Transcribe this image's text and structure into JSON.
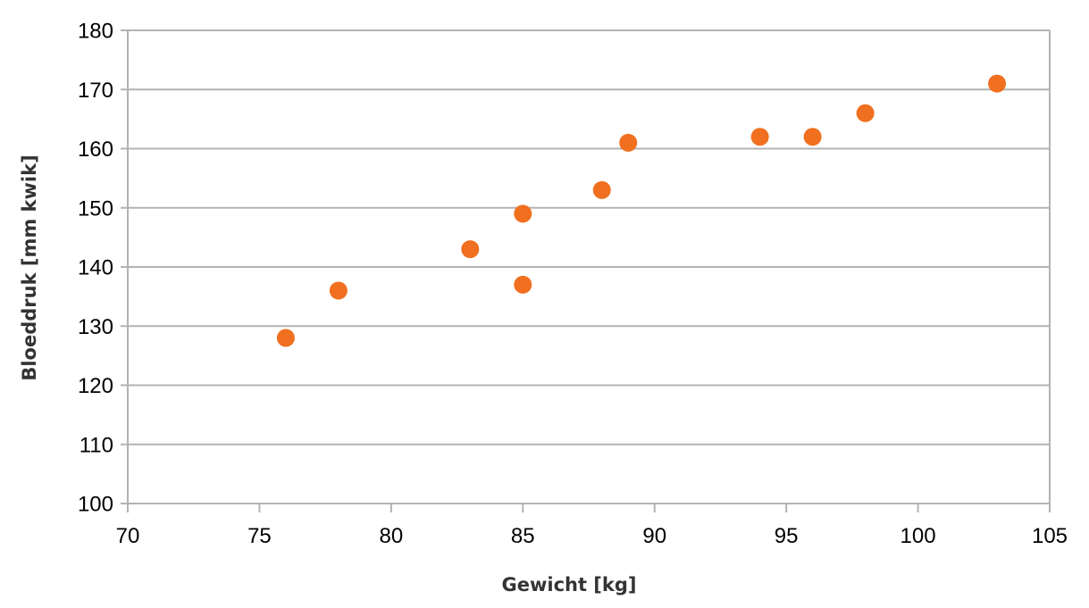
{
  "chart_data": {
    "type": "scatter",
    "xlabel": "Gewicht [kg]",
    "ylabel": "Bloeddruk [mm kwik]",
    "xlim": [
      70,
      105
    ],
    "ylim": [
      100,
      180
    ],
    "xticks": [
      "70",
      "75",
      "80",
      "85",
      "90",
      "95",
      "100",
      "105"
    ],
    "yticks": [
      "100",
      "110",
      "120",
      "130",
      "140",
      "150",
      "160",
      "170",
      "180"
    ],
    "grid": "horizontal",
    "legend": "none",
    "marker_color": "#f07020",
    "points": [
      {
        "x": 76,
        "y": 128
      },
      {
        "x": 78,
        "y": 136
      },
      {
        "x": 83,
        "y": 143
      },
      {
        "x": 85,
        "y": 149
      },
      {
        "x": 85,
        "y": 137
      },
      {
        "x": 88,
        "y": 153
      },
      {
        "x": 89,
        "y": 161
      },
      {
        "x": 94,
        "y": 162
      },
      {
        "x": 96,
        "y": 162
      },
      {
        "x": 98,
        "y": 166
      },
      {
        "x": 103,
        "y": 171
      }
    ]
  }
}
